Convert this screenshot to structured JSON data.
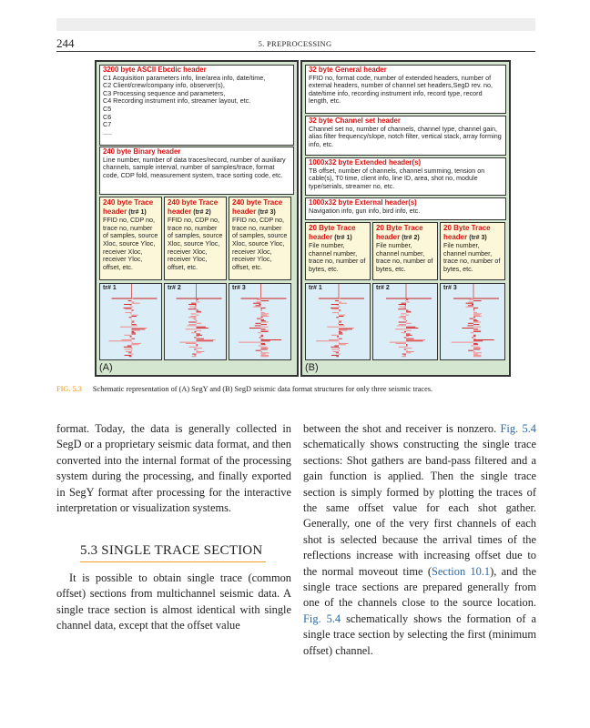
{
  "header": {
    "page_number": "244",
    "running_title": "5. PREPROCESSING"
  },
  "figure": {
    "panel_a": {
      "label": "(A)",
      "ascii": {
        "title": "3200 byte ASCII Ebcdic header",
        "lines": [
          "C1 Acquisition parameters info, line/area info, date/time,",
          "C2 Client/crew/company info, observer(s),",
          "C3 Processing sequence and parameters,",
          "C4 Recording instrument info, streamer layout, etc.",
          "C5",
          "C6",
          "C7",
          "....."
        ]
      },
      "binary": {
        "title": "240 byte Binary header",
        "text": "Line number, number of data traces/record, number of auxiliary channels, sample interval, number of samples/trace, format code, CDP fold, measurement system, trace sorting code, etc."
      },
      "trace_headers": [
        {
          "title": "240 byte Trace header",
          "num": "(tr# 1)",
          "text": "FFID no, CDP no, trace no, number of samples, source Xloc, source Yloc, receiver Xloc, receiver Yloc, offset, etc."
        },
        {
          "title": "240 byte Trace header",
          "num": "(tr# 2)",
          "text": "FFID no, CDP no, trace no, number of samples, source Xloc, source Yloc, receiver Xloc, receiver Yloc, offset, etc."
        },
        {
          "title": "240 byte Trace header",
          "num": "(tr# 3)",
          "text": "FFID no, CDP no, trace no, number of samples, source Xloc, source Yloc, receiver Xloc, receiver Yloc, offset, etc."
        }
      ],
      "traces": [
        "tr# 1",
        "tr# 2",
        "tr# 3"
      ]
    },
    "panel_b": {
      "label": "(B)",
      "general": {
        "title": "32 byte General header",
        "text": "FFID no, format code, number of extended headers, number of external headers, number of channel set headers,SegD rev. no, date/time info, recording instrument info, record type, record length, etc."
      },
      "channel_set": {
        "title": "32 byte Channel set header",
        "text": "Channel set no, number of channels, channel type, channel gain, alias filter frequency/slope, notch filter, vertical stack, array forming info, etc."
      },
      "extended": {
        "title": "1000x32 byte Extended header(s)",
        "text": "TB offset, number of channels, channel summing, tension on cable(s), T0 time, client info, line ID, area, shot no, module type/serials, streamer no,  etc."
      },
      "external": {
        "title": "1000x32 byte External header(s)",
        "text": "Navigation info, gun info, bird info, etc."
      },
      "trace_headers": [
        {
          "title": "20 Byte Trace header",
          "num": "(tr# 1)",
          "text": "File number, channel number, trace no, number of bytes, etc."
        },
        {
          "title": "20 Byte Trace header",
          "num": "(tr# 2)",
          "text": "File number, channel number, trace no, number of bytes, etc."
        },
        {
          "title": "20 Byte Trace header",
          "num": "(tr# 3)",
          "text": "File number, channel number, trace no, number of bytes, etc."
        }
      ],
      "traces": [
        "tr# 1",
        "tr# 2",
        "tr# 3"
      ]
    },
    "caption_label": "FIG. 5.3",
    "caption_text": "Schematic representation of (A) SegY and (B) SegD seismic data format structures for only three seismic traces."
  },
  "body": {
    "left_para1": "format. Today, the data is generally collected in SegD or a proprietary seismic data format, and then converted into the internal format of the processing system during the processing, and finally exported in SegY format after processing for the interactive interpretation or visualization systems.",
    "section_heading": "5.3 SINGLE TRACE SECTION",
    "left_para2": "It is possible to obtain single trace (common offset) sections from multichannel seismic data. A single trace section is almost identical with single channel data, except that the offset value",
    "right_p1": "between the shot and receiver is nonzero. ",
    "right_ref1": "Fig. 5.4",
    "right_p2": " schematically shows constructing the single trace sections: Shot gathers are band-pass filtered and a gain function is applied. Then the single trace section is simply formed by plotting the traces of the same offset value for each shot gather. Generally, one of the very first channels of each shot is selected because the arrival times of the reflections increase with increasing offset due to the normal moveout time (",
    "right_ref2": "Section 10.1",
    "right_p3": "), and the single trace sections are prepared generally from one of the channels close to the source location. ",
    "right_ref3": "Fig. 5.4",
    "right_p4": " schematically shows the formation of a single trace section by selecting the first (minimum offset) channel."
  }
}
